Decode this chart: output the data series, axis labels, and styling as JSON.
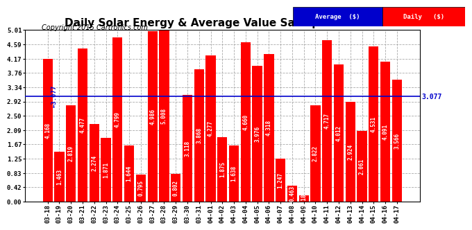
{
  "title": "Daily Solar Energy & Average Value Sat Apr 18 19:33",
  "copyright": "Copyright 2015 Cartronics.com",
  "categories": [
    "03-18",
    "03-19",
    "03-20",
    "03-21",
    "03-22",
    "03-23",
    "03-24",
    "03-25",
    "03-26",
    "03-27",
    "03-28",
    "03-29",
    "03-30",
    "03-31",
    "04-01",
    "04-02",
    "04-03",
    "04-04",
    "04-05",
    "04-06",
    "04-07",
    "04-08",
    "04-09",
    "04-10",
    "04-11",
    "04-12",
    "04-13",
    "04-14",
    "04-15",
    "04-16",
    "04-17"
  ],
  "values": [
    4.168,
    1.463,
    2.819,
    4.477,
    2.274,
    1.871,
    4.799,
    1.644,
    0.795,
    4.986,
    5.008,
    0.802,
    3.118,
    3.868,
    4.277,
    1.875,
    1.638,
    4.66,
    3.976,
    4.318,
    1.247,
    0.463,
    0.189,
    2.822,
    4.717,
    4.012,
    2.924,
    2.061,
    4.531,
    4.091,
    3.566
  ],
  "average": 3.077,
  "bar_color": "#ff0000",
  "avg_line_color": "#0000cc",
  "ylim": [
    0.0,
    5.01
  ],
  "yticks": [
    0.0,
    0.42,
    0.83,
    1.25,
    1.67,
    2.09,
    2.5,
    2.92,
    3.34,
    3.76,
    4.17,
    4.59,
    5.01
  ],
  "bg_color": "#ffffff",
  "grid_color": "#aaaaaa",
  "title_fontsize": 11,
  "copyright_fontsize": 7,
  "tick_fontsize": 6.5,
  "value_fontsize": 5.5
}
